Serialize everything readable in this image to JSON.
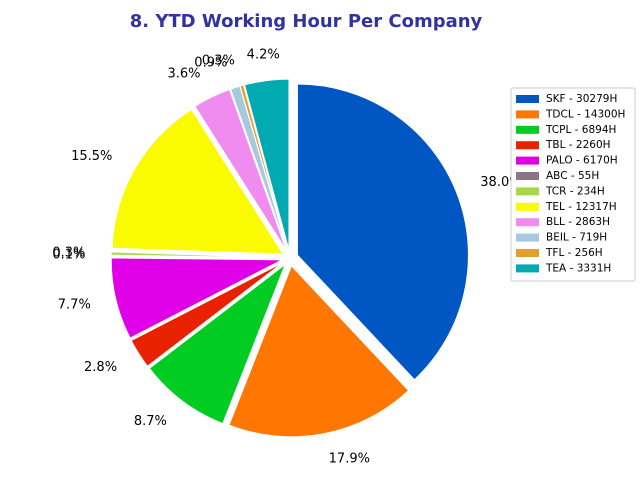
{
  "chart_data": {
    "type": "pie",
    "title": "8. YTD Working Hour Per Company",
    "title_color": "#3333A0",
    "legend_position": "right",
    "start_angle_deg": 90,
    "direction": "clockwise",
    "slices": [
      {
        "legend": "SKF - 30279H",
        "value": 30279,
        "pct_label": "38.0%",
        "color": "#0057C4"
      },
      {
        "legend": "TDCL - 14300H",
        "value": 14300,
        "pct_label": "17.9%",
        "color": "#FF7700"
      },
      {
        "legend": "TCPL - 6894H",
        "value": 6894,
        "pct_label": "8.7%",
        "color": "#00CC22"
      },
      {
        "legend": "TBL - 2260H",
        "value": 2260,
        "pct_label": "2.8%",
        "color": "#E82200"
      },
      {
        "legend": "PALO - 6170H",
        "value": 6170,
        "pct_label": "7.7%",
        "color": "#E000E8"
      },
      {
        "legend": "ABC - 55H",
        "value": 55,
        "pct_label": "0.1%",
        "color": "#8C7588"
      },
      {
        "legend": "TCR - 234H",
        "value": 234,
        "pct_label": "0.3%",
        "color": "#A8D848"
      },
      {
        "legend": "TEL - 12317H",
        "value": 12317,
        "pct_label": "15.5%",
        "color": "#FAFA00"
      },
      {
        "legend": "BLL - 2863H",
        "value": 2863,
        "pct_label": "3.6%",
        "color": "#F08CF0"
      },
      {
        "legend": "BEIL - 719H",
        "value": 719,
        "pct_label": "0.9%",
        "color": "#A8C8E0"
      },
      {
        "legend": "TFL - 256H",
        "value": 256,
        "pct_label": "0.3%",
        "color": "#E0A030"
      },
      {
        "legend": "TEA - 3331H",
        "value": 3331,
        "pct_label": "4.2%",
        "color": "#00AAB0"
      }
    ]
  }
}
